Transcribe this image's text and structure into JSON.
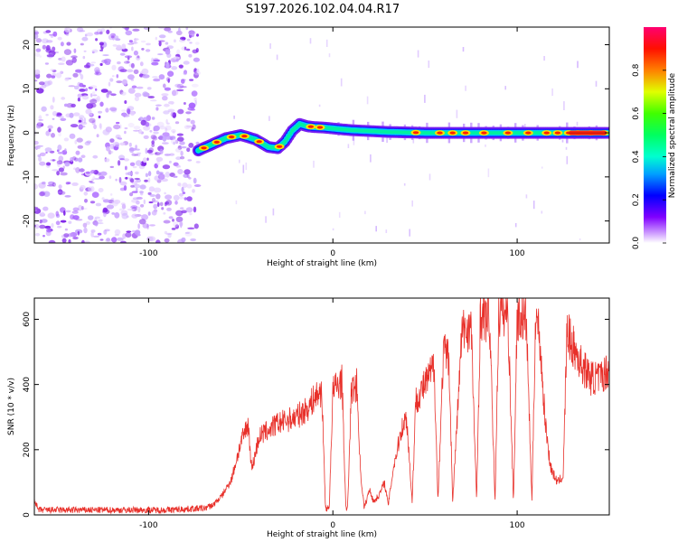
{
  "title": "S197.2026.102.04.04.R17",
  "chart_data": [
    {
      "type": "heatmap",
      "xlabel": "Height of straight line (km)",
      "ylabel": "Frequency (Hz)",
      "xlim": [
        -162,
        150
      ],
      "ylim": [
        -25,
        24
      ],
      "xticks": [
        -100,
        0,
        100
      ],
      "yticks": [
        -20,
        -10,
        0,
        10,
        20
      ],
      "colorbar": {
        "label": "Normalized spectral amplitude",
        "range": [
          0,
          1
        ],
        "ticks": [
          "0.0",
          "0.2",
          "0.4",
          "0.6",
          "0.8"
        ],
        "colors": [
          "#ffffff",
          "#c880ff",
          "#8000ff",
          "#0000ff",
          "#00c0ff",
          "#00ff80",
          "#00ff00",
          "#ffff00",
          "#ff8000",
          "#ff0000",
          "#ff0080"
        ]
      },
      "noise_region_x": [
        -162,
        -73
      ],
      "trace": {
        "x": [
          -73,
          -65,
          -58,
          -50,
          -42,
          -35,
          -30,
          -26,
          -22,
          -18,
          -14,
          -10,
          -5,
          0,
          10,
          20,
          30,
          40,
          50,
          60,
          70,
          80,
          90,
          100,
          110,
          120,
          130,
          140,
          150
        ],
        "freq": [
          -4,
          -2.5,
          -1.2,
          -0.5,
          -1.5,
          -3.2,
          -3.5,
          -2,
          0.5,
          2,
          1.5,
          1.3,
          1.2,
          1,
          0.6,
          0.4,
          0.2,
          0.1,
          0,
          0,
          0,
          0,
          0,
          0,
          0,
          0,
          0,
          0,
          0
        ]
      },
      "bright_x": [
        -70,
        -63,
        -55,
        -48,
        -40,
        -29,
        -12,
        -7,
        45,
        58,
        65,
        72,
        82,
        95,
        106,
        116,
        122,
        128,
        133,
        140,
        147
      ]
    },
    {
      "type": "line",
      "xlabel": "Height of straight line (km)",
      "ylabel": "SNR (10 * v/v)",
      "xlim": [
        -162,
        150
      ],
      "ylim": [
        0,
        665
      ],
      "xticks": [
        -100,
        0,
        100
      ],
      "yticks": [
        0,
        200,
        400,
        600
      ],
      "series": [
        {
          "name": "SNR",
          "color": "#e8302a",
          "x": [
            -162,
            -160,
            -150,
            -140,
            -130,
            -120,
            -110,
            -100,
            -90,
            -80,
            -70,
            -65,
            -60,
            -55,
            -50,
            -46,
            -44,
            -40,
            -35,
            -30,
            -25,
            -20,
            -15,
            -12,
            -10,
            -8,
            -6,
            -4,
            -2,
            0,
            3,
            5,
            7,
            8,
            10,
            13,
            15,
            17,
            19,
            20,
            22,
            25,
            28,
            30,
            33,
            35,
            37,
            40,
            43,
            45,
            48,
            52,
            55,
            57,
            60,
            63,
            65,
            70,
            75,
            78,
            80,
            85,
            88,
            90,
            95,
            98,
            100,
            105,
            108,
            110,
            112,
            115,
            118,
            120,
            122,
            125,
            127,
            130,
            135,
            140,
            145,
            150
          ],
          "y": [
            50,
            15,
            15,
            15,
            15,
            15,
            15,
            15,
            15,
            18,
            20,
            30,
            60,
            110,
            220,
            280,
            140,
            240,
            260,
            280,
            290,
            300,
            320,
            340,
            360,
            370,
            380,
            20,
            20,
            380,
            400,
            410,
            20,
            20,
            380,
            400,
            130,
            20,
            60,
            80,
            40,
            60,
            100,
            30,
            150,
            200,
            260,
            300,
            40,
            350,
            380,
            420,
            460,
            40,
            500,
            480,
            40,
            560,
            580,
            40,
            610,
            600,
            40,
            620,
            620,
            40,
            610,
            600,
            40,
            620,
            560,
            300,
            150,
            120,
            100,
            120,
            560,
            520,
            460,
            420,
            420,
            450
          ]
        }
      ]
    }
  ]
}
